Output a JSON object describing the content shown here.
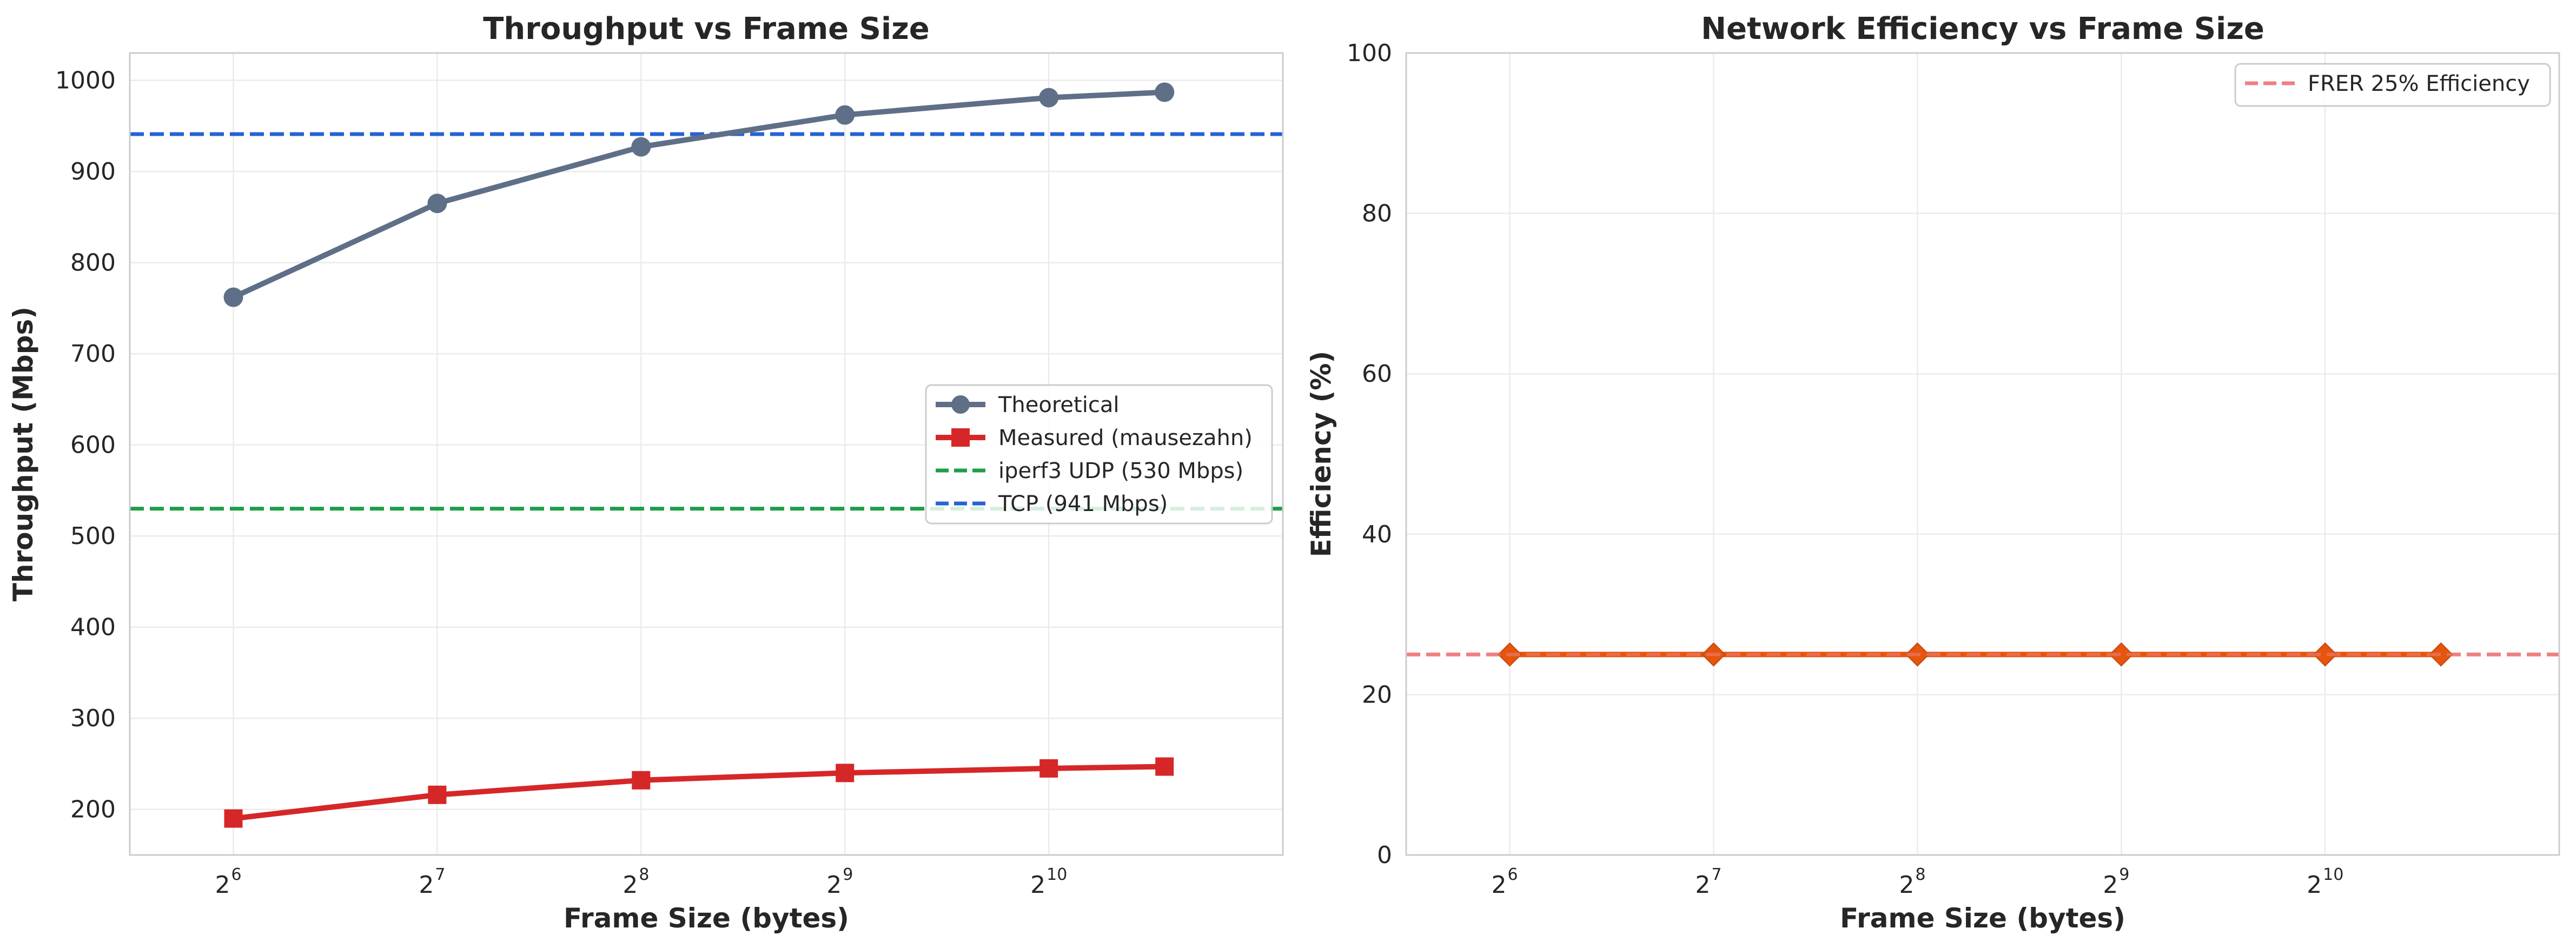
{
  "chart_data": [
    {
      "type": "line",
      "title": "Throughput vs Frame Size",
      "xlabel": "Frame Size (bytes)",
      "ylabel": "Throughput (Mbps)",
      "x_scale": "log2",
      "x": [
        64,
        128,
        256,
        512,
        1024,
        1518
      ],
      "xtick_labels": [
        {
          "base": "2",
          "exp": "6"
        },
        {
          "base": "2",
          "exp": "7"
        },
        {
          "base": "2",
          "exp": "8"
        },
        {
          "base": "2",
          "exp": "9"
        },
        {
          "base": "2",
          "exp": "10"
        }
      ],
      "xtick_values": [
        64,
        128,
        256,
        512,
        1024
      ],
      "ylim": [
        150,
        1030
      ],
      "yticks": [
        "200",
        "300",
        "400",
        "500",
        "600",
        "700",
        "800",
        "900",
        "1000"
      ],
      "grid": true,
      "legend_position": "center-right",
      "series": [
        {
          "name": "Theoretical",
          "values": [
            762,
            865,
            927,
            962,
            981,
            987
          ],
          "color": "#5f6f87",
          "marker": "circle",
          "style": "solid"
        },
        {
          "name": "Measured (mausezahn)",
          "values": [
            190,
            216,
            232,
            240,
            245,
            247
          ],
          "color": "#d62728",
          "marker": "square",
          "style": "solid"
        }
      ],
      "reference_lines": [
        {
          "name": "iperf3 UDP (530 Mbps)",
          "value": 530,
          "color": "#1e9e4a",
          "style": "dashed"
        },
        {
          "name": "TCP (941 Mbps)",
          "value": 941,
          "color": "#2563d6",
          "style": "dashed"
        }
      ]
    },
    {
      "type": "line",
      "title": "Network Efficiency vs Frame Size",
      "xlabel": "Frame Size (bytes)",
      "ylabel": "Efficiency (%)",
      "x_scale": "log2",
      "x": [
        64,
        128,
        256,
        512,
        1024,
        1518
      ],
      "xtick_labels": [
        {
          "base": "2",
          "exp": "6"
        },
        {
          "base": "2",
          "exp": "7"
        },
        {
          "base": "2",
          "exp": "8"
        },
        {
          "base": "2",
          "exp": "9"
        },
        {
          "base": "2",
          "exp": "10"
        }
      ],
      "xtick_values": [
        64,
        128,
        256,
        512,
        1024
      ],
      "ylim": [
        0,
        100
      ],
      "yticks": [
        "0",
        "20",
        "40",
        "60",
        "80",
        "100"
      ],
      "grid": true,
      "legend_position": "top-right",
      "series": [
        {
          "values": [
            25,
            25,
            25,
            25,
            25,
            25
          ],
          "color": "#e6550d",
          "marker": "diamond",
          "style": "solid"
        }
      ],
      "reference_lines": [
        {
          "name": "FRER 25% Efficiency",
          "value": 25,
          "color": "#f08080",
          "style": "dashed"
        }
      ]
    }
  ]
}
